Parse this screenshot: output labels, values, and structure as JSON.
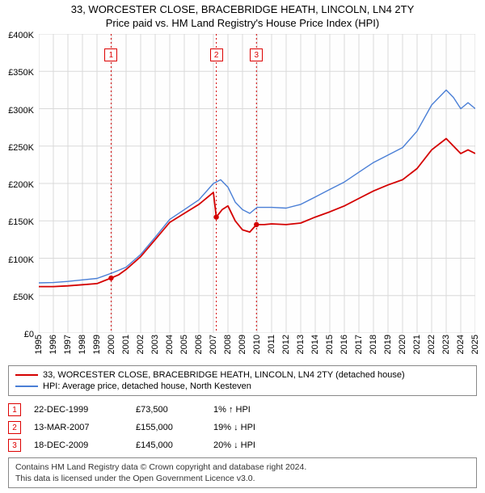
{
  "title": "33, WORCESTER CLOSE, BRACEBRIDGE HEATH, LINCOLN, LN4 2TY",
  "subtitle": "Price paid vs. HM Land Registry's House Price Index (HPI)",
  "chart": {
    "type": "line",
    "background_color": "#fefefe",
    "grid_color": "#d9d9d9",
    "border_color": "#888888",
    "y": {
      "min": 0,
      "max": 400000,
      "step": 50000,
      "labels": [
        "£0",
        "£50K",
        "£100K",
        "£150K",
        "£200K",
        "£250K",
        "£300K",
        "£350K",
        "£400K"
      ]
    },
    "x": {
      "min": 1995,
      "max": 2025,
      "step": 1,
      "labels": [
        "1995",
        "1996",
        "1997",
        "1998",
        "1999",
        "2000",
        "2001",
        "2002",
        "2003",
        "2004",
        "2005",
        "2006",
        "2007",
        "2008",
        "2009",
        "2010",
        "2011",
        "2012",
        "2013",
        "2014",
        "2015",
        "2016",
        "2017",
        "2018",
        "2019",
        "2020",
        "2021",
        "2022",
        "2023",
        "2024",
        "2025"
      ]
    },
    "series": [
      {
        "name": "subject",
        "label": "33, WORCESTER CLOSE, BRACEBRIDGE HEATH, LINCOLN, LN4 2TY (detached house)",
        "color": "#d40000",
        "width": 1.8,
        "points": [
          [
            1995,
            62000
          ],
          [
            1996,
            62000
          ],
          [
            1997,
            63000
          ],
          [
            1998,
            64500
          ],
          [
            1999,
            66000
          ],
          [
            1999.97,
            73500
          ],
          [
            2000.5,
            78000
          ],
          [
            2001,
            85000
          ],
          [
            2002,
            102000
          ],
          [
            2003,
            125000
          ],
          [
            2004,
            148000
          ],
          [
            2005,
            160000
          ],
          [
            2006,
            172000
          ],
          [
            2007,
            188000
          ],
          [
            2007.2,
            155000
          ],
          [
            2007.6,
            165000
          ],
          [
            2008,
            170000
          ],
          [
            2008.5,
            150000
          ],
          [
            2009,
            138000
          ],
          [
            2009.5,
            135000
          ],
          [
            2009.96,
            145000
          ],
          [
            2010.5,
            145000
          ],
          [
            2011,
            146000
          ],
          [
            2012,
            145000
          ],
          [
            2013,
            147000
          ],
          [
            2014,
            155000
          ],
          [
            2015,
            162000
          ],
          [
            2016,
            170000
          ],
          [
            2017,
            180000
          ],
          [
            2018,
            190000
          ],
          [
            2019,
            198000
          ],
          [
            2020,
            205000
          ],
          [
            2021,
            220000
          ],
          [
            2022,
            245000
          ],
          [
            2023,
            260000
          ],
          [
            2023.5,
            250000
          ],
          [
            2024,
            240000
          ],
          [
            2024.5,
            245000
          ],
          [
            2025,
            240000
          ]
        ]
      },
      {
        "name": "hpi",
        "label": "HPI: Average price, detached house, North Kesteven",
        "color": "#4a7fd6",
        "width": 1.4,
        "points": [
          [
            1995,
            67000
          ],
          [
            1996,
            67500
          ],
          [
            1997,
            69000
          ],
          [
            1998,
            71000
          ],
          [
            1999,
            73000
          ],
          [
            2000,
            80000
          ],
          [
            2001,
            88000
          ],
          [
            2002,
            105000
          ],
          [
            2003,
            128000
          ],
          [
            2004,
            152000
          ],
          [
            2005,
            165000
          ],
          [
            2006,
            178000
          ],
          [
            2007,
            200000
          ],
          [
            2007.5,
            205000
          ],
          [
            2008,
            195000
          ],
          [
            2008.5,
            175000
          ],
          [
            2009,
            165000
          ],
          [
            2009.5,
            160000
          ],
          [
            2010,
            168000
          ],
          [
            2011,
            168000
          ],
          [
            2012,
            167000
          ],
          [
            2013,
            172000
          ],
          [
            2014,
            182000
          ],
          [
            2015,
            192000
          ],
          [
            2016,
            202000
          ],
          [
            2017,
            215000
          ],
          [
            2018,
            228000
          ],
          [
            2019,
            238000
          ],
          [
            2020,
            248000
          ],
          [
            2021,
            270000
          ],
          [
            2022,
            305000
          ],
          [
            2023,
            325000
          ],
          [
            2023.5,
            315000
          ],
          [
            2024,
            300000
          ],
          [
            2024.5,
            308000
          ],
          [
            2025,
            300000
          ]
        ]
      }
    ],
    "markers": [
      {
        "n": "1",
        "x": 1999.97,
        "y": 73500
      },
      {
        "n": "2",
        "x": 2007.2,
        "y": 155000
      },
      {
        "n": "3",
        "x": 2009.96,
        "y": 145000
      }
    ],
    "marker_line_color": "#d40000",
    "marker_dot_color": "#d40000",
    "marker_dot_radius": 3.2,
    "marker_box_top_offset": 18
  },
  "legend": {
    "rows": [
      {
        "color": "#d40000",
        "label": "33, WORCESTER CLOSE, BRACEBRIDGE HEATH, LINCOLN, LN4 2TY (detached house)"
      },
      {
        "color": "#4a7fd6",
        "label": "HPI: Average price, detached house, North Kesteven"
      }
    ]
  },
  "events": [
    {
      "n": "1",
      "date": "22-DEC-1999",
      "price": "£73,500",
      "hpi": "1% ↑ HPI"
    },
    {
      "n": "2",
      "date": "13-MAR-2007",
      "price": "£155,000",
      "hpi": "19% ↓ HPI"
    },
    {
      "n": "3",
      "date": "18-DEC-2009",
      "price": "£145,000",
      "hpi": "20% ↓ HPI"
    }
  ],
  "footer": {
    "line1": "Contains HM Land Registry data © Crown copyright and database right 2024.",
    "line2": "This data is licensed under the Open Government Licence v3.0."
  }
}
